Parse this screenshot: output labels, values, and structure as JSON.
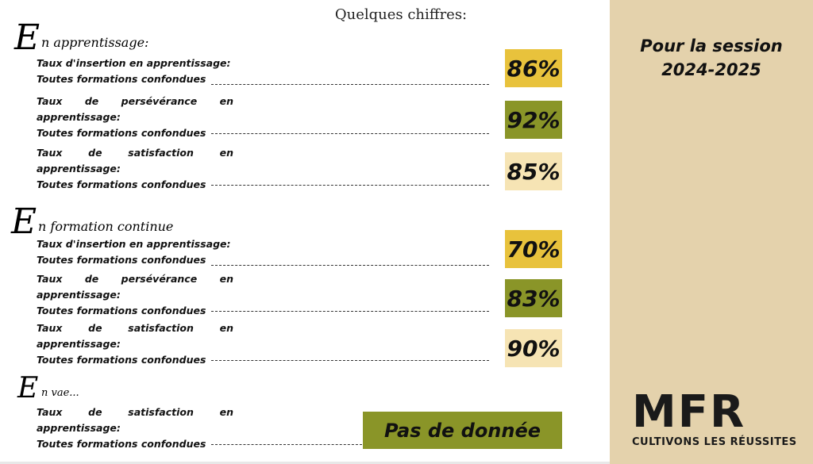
{
  "header": {
    "title": "Quelques chiffres:"
  },
  "sections": [
    {
      "initial": "E",
      "rest": "n apprentissage:",
      "rows": [
        {
          "word1": "Taux",
          "word2": "d'insertion en apprentissage:",
          "line1": "Taux d'insertion en apprentissage:",
          "line2": "Toutes formations confondues",
          "value": "86%",
          "color": "#e8c23c"
        },
        {
          "word1": "Taux",
          "word2": "de",
          "word3": "persévérance",
          "word4": "en",
          "line2": "apprentissage:",
          "line3": "Toutes formations confondues",
          "value": "92%",
          "color": "#8a9528"
        },
        {
          "word1": "Taux",
          "word2": "de",
          "word3": "satisfaction",
          "word4": "en",
          "line2": "apprentissage:",
          "line3": "Toutes formations confondues",
          "value": "85%",
          "color": "#f6e4b4"
        }
      ]
    },
    {
      "initial": "E",
      "rest": "n formation continue",
      "rows": [
        {
          "line1": "Taux d'insertion en apprentissage:",
          "line2": "Toutes formations confondues",
          "value": "70%",
          "color": "#e8c23c"
        },
        {
          "word1": "Taux",
          "word2": "de",
          "word3": "persévérance",
          "word4": "en",
          "line2": "apprentissage:",
          "line3": "Toutes formations confondues",
          "value": "83%",
          "color": "#8a9528"
        },
        {
          "word1": "Taux",
          "word2": "de",
          "word3": "satisfaction",
          "word4": "en",
          "line2": "apprentissage:",
          "line3": "Toutes formations confondues",
          "value": "90%",
          "color": "#f6e4b4"
        }
      ]
    },
    {
      "initial": "E",
      "rest": "n vae...",
      "rows": [
        {
          "word1": "Taux",
          "word2": "de",
          "word3": "satisfaction",
          "word4": "en",
          "line2": "apprentissage:",
          "line3": "Toutes formations confondues",
          "value": "Pas de donnée",
          "color": "#8a9528"
        }
      ]
    }
  ],
  "sidebar": {
    "title_line1": "Pour la session",
    "title_line2": "2024-2025",
    "background": "#e4d2ac",
    "logo_text": "MFR",
    "logo_tagline": "CULTIVONS LES RÉUSSITES"
  }
}
